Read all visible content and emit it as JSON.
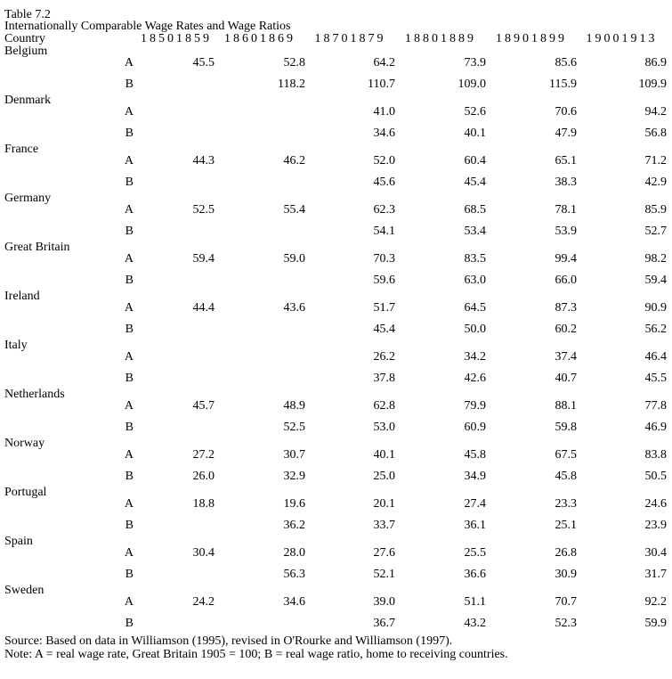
{
  "table": {
    "title_line1": "Table 7.2",
    "title_line2": "Internationally Comparable Wage Rates and Wage Ratios",
    "header": {
      "country_label": "Country",
      "periods": [
        "18501859",
        "18601869",
        "18701879",
        "18801889",
        "18901899",
        "19001913"
      ]
    },
    "row_labels": {
      "a": "A",
      "b": "B"
    },
    "countries": [
      {
        "name": "Belgium",
        "a": [
          "45.5",
          "52.8",
          "64.2",
          "73.9",
          "85.6",
          "86.9"
        ],
        "b": [
          "",
          "118.2",
          "110.7",
          "109.0",
          "115.9",
          "109.9"
        ]
      },
      {
        "name": "Denmark",
        "a": [
          "",
          "",
          "41.0",
          "52.6",
          "70.6",
          "94.2"
        ],
        "b": [
          "",
          "",
          "34.6",
          "40.1",
          "47.9",
          "56.8"
        ]
      },
      {
        "name": "France",
        "a": [
          "44.3",
          "46.2",
          "52.0",
          "60.4",
          "65.1",
          "71.2"
        ],
        "b": [
          "",
          "",
          "45.6",
          "45.4",
          "38.3",
          "42.9"
        ]
      },
      {
        "name": "Germany",
        "a": [
          "52.5",
          "55.4",
          "62.3",
          "68.5",
          "78.1",
          "85.9"
        ],
        "b": [
          "",
          "",
          "54.1",
          "53.4",
          "53.9",
          "52.7"
        ]
      },
      {
        "name": "Great Britain",
        "a": [
          "59.4",
          "59.0",
          "70.3",
          "83.5",
          "99.4",
          "98.2"
        ],
        "b": [
          "",
          "",
          "59.6",
          "63.0",
          "66.0",
          "59.4"
        ]
      },
      {
        "name": "Ireland",
        "a": [
          "44.4",
          "43.6",
          "51.7",
          "64.5",
          "87.3",
          "90.9"
        ],
        "b": [
          "",
          "",
          "45.4",
          "50.0",
          "60.2",
          "56.2"
        ]
      },
      {
        "name": "Italy",
        "a": [
          "",
          "",
          "26.2",
          "34.2",
          "37.4",
          "46.4"
        ],
        "b": [
          "",
          "",
          "37.8",
          "42.6",
          "40.7",
          "45.5"
        ]
      },
      {
        "name": "Netherlands",
        "a": [
          "45.7",
          "48.9",
          "62.8",
          "79.9",
          "88.1",
          "77.8"
        ],
        "b": [
          "",
          "52.5",
          "53.0",
          "60.9",
          "59.8",
          "46.9"
        ]
      },
      {
        "name": "Norway",
        "a": [
          "27.2",
          "30.7",
          "40.1",
          "45.8",
          "67.5",
          "83.8"
        ],
        "b": [
          "26.0",
          "32.9",
          "25.0",
          "34.9",
          "45.8",
          "50.5"
        ]
      },
      {
        "name": "Portugal",
        "a": [
          "18.8",
          "19.6",
          "20.1",
          "27.4",
          "23.3",
          "24.6"
        ],
        "b": [
          "",
          "36.2",
          "33.7",
          "36.1",
          "25.1",
          "23.9"
        ]
      },
      {
        "name": "Spain",
        "a": [
          "30.4",
          "28.0",
          "27.6",
          "25.5",
          "26.8",
          "30.4"
        ],
        "b": [
          "",
          "56.3",
          "52.1",
          "36.6",
          "30.9",
          "31.7"
        ]
      },
      {
        "name": "Sweden",
        "a": [
          "24.2",
          "34.6",
          "39.0",
          "51.1",
          "70.7",
          "92.2"
        ],
        "b": [
          "",
          "",
          "36.7",
          "43.2",
          "52.3",
          "59.9"
        ]
      }
    ],
    "source": "Source: Based on data in Williamson (1995), revised in O'Rourke and Williamson (1997).",
    "note": "Note: A = real wage rate, Great Britain 1905 = 100; B = real wage ratio, home to receiving countries."
  }
}
